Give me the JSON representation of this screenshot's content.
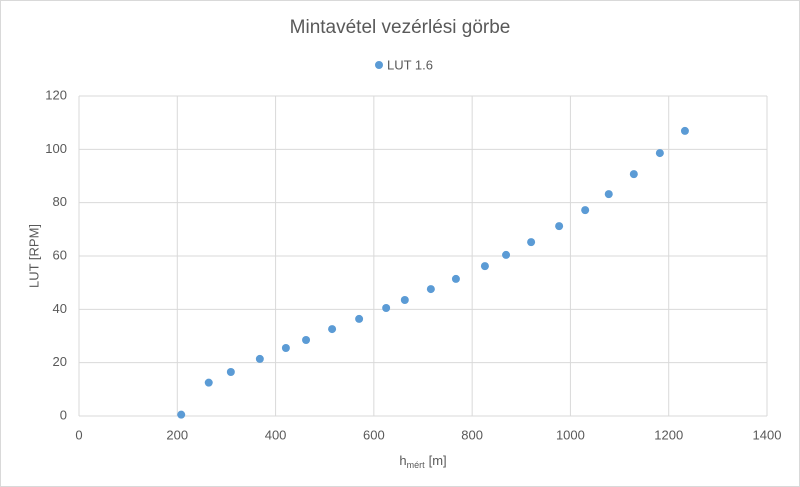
{
  "chart_data": {
    "type": "scatter",
    "title": "Mintavétel vezérlési görbe",
    "x_label": {
      "main": "h",
      "sub": "mért",
      "unit": "[m]"
    },
    "y_label": "LUT [RPM]",
    "series": [
      {
        "name": "LUT 1.6",
        "color": "#5b9bd5",
        "x": [
          208,
          264,
          309,
          368,
          421,
          462,
          515,
          570,
          625,
          663,
          716,
          767,
          826,
          869,
          920,
          977,
          1030,
          1078,
          1129,
          1182,
          1233
        ],
        "values": [
          0.5,
          12.5,
          16.5,
          21.4,
          25.5,
          28.5,
          32.6,
          36.4,
          40.5,
          43.5,
          47.6,
          51.4,
          56.2,
          60.4,
          65.2,
          71.2,
          77.2,
          83.2,
          90.7,
          98.6,
          106.9
        ]
      }
    ],
    "xlim": [
      0,
      1400
    ],
    "xticks": [
      0,
      200,
      400,
      600,
      800,
      1000,
      1200,
      1400
    ],
    "ylim": [
      0,
      120
    ],
    "yticks": [
      0,
      20,
      40,
      60,
      80,
      100,
      120
    ],
    "grid": true,
    "legend": "top"
  }
}
